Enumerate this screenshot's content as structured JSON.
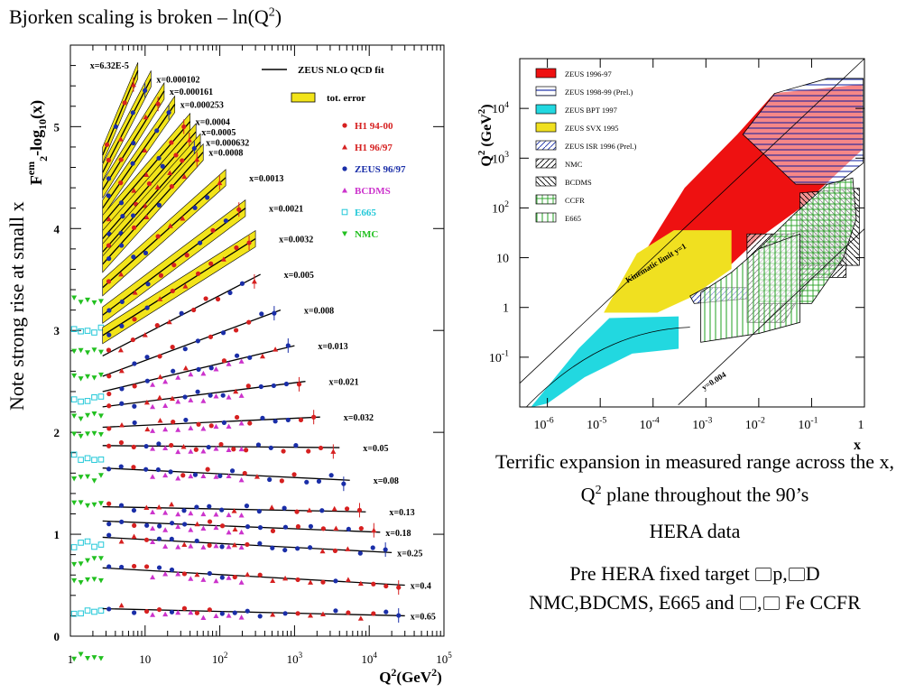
{
  "slide": {
    "title_main": "Bjorken scaling is broken – ln(Q",
    "title_sup": "2",
    "title_end": ")",
    "side_text": "Note strong rise at small x",
    "caption1": "Terrific expansion in measured range across the x, Q",
    "caption1_sup": "2",
    "caption1_end": " plane throughout the 90’s",
    "caption2": "HERA data",
    "caption3_a": "Pre HERA fixed target ",
    "caption3_b": "p,",
    "caption3_c": "D",
    "caption3_d": "NMC,BDCMS, E665 and ",
    "caption3_e": ",",
    "caption3_f": " Fe CCFR"
  },
  "chart_data": [
    {
      "type": "line",
      "id": "f2-vs-q2",
      "ylabel_main": "F",
      "ylabel_sub": "2",
      "ylabel_sup": "em",
      "ylabel_rest": "-log",
      "ylabel_sub2": "10",
      "ylabel_end": "(x)",
      "xlabel_main": "Q",
      "xlabel_sup": "2",
      "xlabel_end": "(GeV",
      "xlabel_sup2": "2",
      "xlabel_close": ")",
      "xscale": "log",
      "xlim": [
        1,
        100000
      ],
      "ylim": [
        0,
        5.8
      ],
      "xticks": [
        {
          "v": 1,
          "t": "1",
          "e": ""
        },
        {
          "v": 10,
          "t": "10",
          "e": ""
        },
        {
          "v": 100,
          "t": "10",
          "e": "2"
        },
        {
          "v": 1000,
          "t": "10",
          "e": "3"
        },
        {
          "v": 10000,
          "t": "10",
          "e": "4"
        },
        {
          "v": 100000,
          "t": "10",
          "e": "5"
        }
      ],
      "yticks": [
        0,
        1,
        2,
        3,
        4,
        5
      ],
      "legend": {
        "placement": "top-right",
        "fit_label": "ZEUS NLO QCD fit",
        "error_label": "tot. error",
        "entries": [
          {
            "label": "H1 94-00",
            "marker": "circle",
            "color": "#d62020"
          },
          {
            "label": "H1 96/97",
            "marker": "triangle-up",
            "color": "#d62020"
          },
          {
            "label": "ZEUS 96/97",
            "marker": "circle",
            "color": "#1a2ea8"
          },
          {
            "label": "BCDMS",
            "marker": "triangle-up",
            "color": "#cc33cc"
          },
          {
            "label": "E665",
            "marker": "square-open",
            "color": "#22c8d8"
          },
          {
            "label": "NMC",
            "marker": "triangle-down",
            "color": "#22c020"
          }
        ]
      },
      "series": [
        {
          "name": "x=6.32E-5",
          "q2": [
            2.7,
            8
          ],
          "f2log": [
            4.72,
            5.55
          ]
        },
        {
          "name": "x=0.000102",
          "q2": [
            2.7,
            12
          ],
          "f2log": [
            4.55,
            5.47
          ]
        },
        {
          "name": "x=0.000161",
          "q2": [
            2.7,
            18
          ],
          "f2log": [
            4.38,
            5.35
          ]
        },
        {
          "name": "x=0.000253",
          "q2": [
            2.7,
            25
          ],
          "f2log": [
            4.2,
            5.22
          ]
        },
        {
          "name": "x=0.0004",
          "q2": [
            2.7,
            40
          ],
          "f2log": [
            4.05,
            5.05
          ]
        },
        {
          "name": "x=0.0005",
          "q2": [
            2.7,
            48
          ],
          "f2log": [
            3.9,
            4.95
          ]
        },
        {
          "name": "x=0.000632",
          "q2": [
            2.7,
            55
          ],
          "f2log": [
            3.77,
            4.85
          ]
        },
        {
          "name": "x=0.0008",
          "q2": [
            2.7,
            60
          ],
          "f2log": [
            3.65,
            4.75
          ]
        },
        {
          "name": "x=0.0013",
          "q2": [
            2.7,
            120
          ],
          "f2log": [
            3.42,
            4.5
          ]
        },
        {
          "name": "x=0.0021",
          "q2": [
            2.7,
            220
          ],
          "f2log": [
            3.15,
            4.2
          ]
        },
        {
          "name": "x=0.0032",
          "q2": [
            2.7,
            300
          ],
          "f2log": [
            2.95,
            3.9
          ]
        },
        {
          "name": "x=0.005",
          "q2": [
            2.7,
            350
          ],
          "f2log": [
            2.75,
            3.55
          ]
        },
        {
          "name": "x=0.008",
          "q2": [
            2.7,
            650
          ],
          "f2log": [
            2.55,
            3.2
          ]
        },
        {
          "name": "x=0.013",
          "q2": [
            2.7,
            1000
          ],
          "f2log": [
            2.4,
            2.85
          ]
        },
        {
          "name": "x=0.021",
          "q2": [
            2.7,
            1400
          ],
          "f2log": [
            2.25,
            2.5
          ]
        },
        {
          "name": "x=0.032",
          "q2": [
            2.7,
            2200
          ],
          "f2log": [
            2.05,
            2.15
          ]
        },
        {
          "name": "x=0.05",
          "q2": [
            2.7,
            4000
          ],
          "f2log": [
            1.87,
            1.85
          ]
        },
        {
          "name": "x=0.08",
          "q2": [
            2.7,
            5500
          ],
          "f2log": [
            1.65,
            1.53
          ]
        },
        {
          "name": "x=0.13",
          "q2": [
            2.7,
            9000
          ],
          "f2log": [
            1.27,
            1.22
          ]
        },
        {
          "name": "x=0.18",
          "q2": [
            2.7,
            14000
          ],
          "f2log": [
            1.13,
            1.02
          ]
        },
        {
          "name": "x=0.25",
          "q2": [
            2.7,
            20000
          ],
          "f2log": [
            0.97,
            0.82
          ]
        },
        {
          "name": "x=0.4",
          "q2": [
            2.7,
            30000
          ],
          "f2log": [
            0.67,
            0.5
          ]
        },
        {
          "name": "x=0.65",
          "q2": [
            2.7,
            30000
          ],
          "f2log": [
            0.27,
            0.2
          ]
        }
      ]
    },
    {
      "type": "area",
      "id": "x-q2-plane",
      "ylabel_main": "Q",
      "ylabel_sup": "2",
      "ylabel_end": " (GeV",
      "ylabel_sup2": "2",
      "ylabel_close": ")",
      "xlabel": "x",
      "xscale": "log",
      "yscale": "log",
      "xlim": [
        3e-07,
        1
      ],
      "ylim": [
        0.01,
        100000
      ],
      "xticks": [
        {
          "v": 1e-06,
          "t": "10",
          "e": "-6"
        },
        {
          "v": 1e-05,
          "t": "10",
          "e": "-5"
        },
        {
          "v": 0.0001,
          "t": "10",
          "e": "-4"
        },
        {
          "v": 0.001,
          "t": "10",
          "e": "-3"
        },
        {
          "v": 0.01,
          "t": "10",
          "e": "-2"
        },
        {
          "v": 0.1,
          "t": "10",
          "e": "-1"
        },
        {
          "v": 1,
          "t": "1",
          "e": ""
        }
      ],
      "yticks": [
        {
          "v": 0.1,
          "t": "10",
          "e": "-1"
        },
        {
          "v": 1,
          "t": "1",
          "e": ""
        },
        {
          "v": 10,
          "t": "10",
          "e": ""
        },
        {
          "v": 100,
          "t": "10",
          "e": "2"
        },
        {
          "v": 1000,
          "t": "10",
          "e": "3"
        },
        {
          "v": 10000,
          "t": "10",
          "e": "4"
        }
      ],
      "annotations": [
        "Kinematic limit  y=1",
        "y=0.004"
      ],
      "legend": {
        "placement": "top-left",
        "entries": [
          {
            "label": "ZEUS 1996-97",
            "fill": "#ee1111",
            "pattern": "solid"
          },
          {
            "label": "ZEUS 1998-99 (Prel.)",
            "fill": "#1a2ea8",
            "pattern": "hlines"
          },
          {
            "label": "ZEUS BPT 1997",
            "fill": "#22d8e0",
            "pattern": "solid"
          },
          {
            "label": "ZEUS SVX 1995",
            "fill": "#f0e020",
            "pattern": "solid"
          },
          {
            "label": "ZEUS ISR 1996 (Prel.)",
            "fill": "#1a2ea8",
            "pattern": "diag"
          },
          {
            "label": "NMC",
            "fill": "#000000",
            "pattern": "diag"
          },
          {
            "label": "BCDMS",
            "fill": "#000000",
            "pattern": "diag2"
          },
          {
            "label": "CCFR",
            "fill": "#22a020",
            "pattern": "grid"
          },
          {
            "label": "E665",
            "fill": "#22a020",
            "pattern": "vlines"
          }
        ]
      },
      "regions": [
        {
          "name": "ZEUS 1996-97",
          "fill": "#ee1111",
          "pattern": "solid",
          "poly": [
            [
              3e-05,
              3
            ],
            [
              0.0004,
              250
            ],
            [
              0.004,
              3000
            ],
            [
              0.02,
              20000
            ],
            [
              0.9,
              30000
            ],
            [
              0.9,
              1500
            ],
            [
              0.3,
              500
            ],
            [
              0.06,
              100
            ],
            [
              0.01,
              25
            ],
            [
              0.002,
              5
            ],
            [
              0.0005,
              2.5
            ],
            [
              5e-05,
              2.5
            ]
          ]
        },
        {
          "name": "ZEUS 1998-99 (Prel.)",
          "fill": "#1a2ea8",
          "pattern": "hlines",
          "poly": [
            [
              0.005,
              3000
            ],
            [
              0.02,
              20000
            ],
            [
              0.2,
              40000
            ],
            [
              0.95,
              40000
            ],
            [
              0.95,
              800
            ],
            [
              0.3,
              300
            ],
            [
              0.05,
              300
            ],
            [
              0.01,
              1500
            ]
          ]
        },
        {
          "name": "ZEUS SVX 1995",
          "fill": "#f0e020",
          "pattern": "solid",
          "poly": [
            [
              1.2e-05,
              0.8
            ],
            [
              5e-05,
              12
            ],
            [
              0.00025,
              35
            ],
            [
              0.003,
              35
            ],
            [
              0.003,
              6
            ],
            [
              0.0005,
              1.6
            ],
            [
              0.00012,
              0.8
            ]
          ]
        },
        {
          "name": "ZEUS BPT 1997",
          "fill": "#22d8e0",
          "pattern": "solid",
          "poly": [
            [
              5e-07,
              0.01
            ],
            [
              4e-06,
              0.15
            ],
            [
              1.5e-05,
              0.6
            ],
            [
              0.0003,
              0.65
            ],
            [
              0.0003,
              0.15
            ],
            [
              4e-05,
              0.12
            ],
            [
              5e-06,
              0.04
            ],
            [
              1e-06,
              0.012
            ]
          ]
        },
        {
          "name": "ZEUS ISR 1996 (Prel.)",
          "fill": "#1a2ea8",
          "pattern": "diag",
          "poly": [
            [
              0.0005,
              1.7
            ],
            [
              0.001,
              2.5
            ],
            [
              0.006,
              2.5
            ],
            [
              0.006,
              1.5
            ],
            [
              0.0006,
              1.2
            ]
          ]
        },
        {
          "name": "NMC",
          "fill": "#000000",
          "pattern": "diag",
          "poly": [
            [
              0.006,
              0.5
            ],
            [
              0.006,
              30
            ],
            [
              0.04,
              30
            ],
            [
              0.4,
              55
            ],
            [
              0.45,
              30
            ],
            [
              0.45,
              4
            ],
            [
              0.1,
              4
            ],
            [
              0.03,
              0.5
            ]
          ]
        },
        {
          "name": "BCDMS",
          "fill": "#000000",
          "pattern": "diag2",
          "poly": [
            [
              0.06,
              7
            ],
            [
              0.06,
              200
            ],
            [
              0.8,
              250
            ],
            [
              0.8,
              7
            ]
          ]
        },
        {
          "name": "CCFR",
          "fill": "#22a020",
          "pattern": "grid",
          "poly": [
            [
              0.01,
              1.2
            ],
            [
              0.01,
              15
            ],
            [
              0.05,
              80
            ],
            [
              0.2,
              300
            ],
            [
              0.6,
              400
            ],
            [
              0.7,
              60
            ],
            [
              0.4,
              10
            ],
            [
              0.1,
              1.2
            ]
          ]
        },
        {
          "name": "E665",
          "fill": "#22a020",
          "pattern": "vlines",
          "poly": [
            [
              0.0008,
              0.2
            ],
            [
              0.0008,
              2
            ],
            [
              0.003,
              5
            ],
            [
              0.01,
              15
            ],
            [
              0.06,
              30
            ],
            [
              0.06,
              0.5
            ],
            [
              0.01,
              0.3
            ]
          ]
        }
      ]
    }
  ]
}
